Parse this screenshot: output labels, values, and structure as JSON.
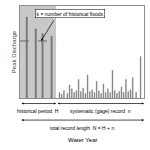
{
  "chart_data": {
    "type": "bar",
    "ylabel": "Peak Discharge",
    "xlabel": "Water Year",
    "xlim": [
      0,
      110
    ],
    "ylim": [
      0,
      1.0
    ],
    "xticks": [],
    "yticks": [],
    "tick_labels": false,
    "grid": false,
    "series": [
      {
        "color": "#808080",
        "x": [
          6,
          14,
          20,
          28
        ],
        "values": [
          0.88,
          0.75,
          0.7,
          0.67
        ]
      },
      {
        "color": "#909090",
        "x": [
          35,
          37,
          39,
          42,
          44,
          46,
          48,
          50,
          52,
          54,
          56,
          58,
          60,
          62,
          64,
          66,
          68,
          70,
          72,
          74,
          76,
          78,
          80,
          82,
          84,
          86,
          88,
          90,
          92,
          94,
          96,
          98,
          100,
          103,
          107
        ],
        "values": [
          0.06,
          0.04,
          0.08,
          0.05,
          0.14,
          0.1,
          0.06,
          0.08,
          0.2,
          0.07,
          0.11,
          0.05,
          0.25,
          0.07,
          0.09,
          0.06,
          0.18,
          0.08,
          0.05,
          0.15,
          0.06,
          0.1,
          0.06,
          0.3,
          0.08,
          0.05,
          0.07,
          0.12,
          0.06,
          0.2,
          0.07,
          0.09,
          0.22,
          0.06,
          0.45
        ]
      }
    ],
    "shaded": {
      "x": [
        0,
        32
      ],
      "color": "#c8c8c8"
    },
    "threshold": {
      "y": 0.62,
      "x": [
        0,
        32
      ],
      "color": "#666666"
    },
    "brackets": [
      {
        "text": "historical period  H",
        "x": [
          0,
          32
        ]
      },
      {
        "text": "systematic (gage) record  n",
        "x": [
          32,
          110
        ]
      },
      {
        "text": "total record length  N = H + n",
        "x": [
          0,
          110
        ]
      }
    ],
    "annotations": [
      "k = number of historical floods"
    ]
  }
}
